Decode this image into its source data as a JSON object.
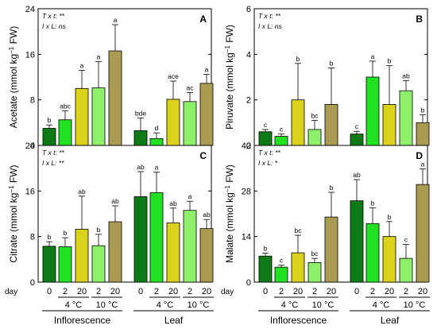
{
  "colors": [
    "#0d7a16",
    "#22e022",
    "#dcd21c",
    "#8ef06a",
    "#a99b52"
  ],
  "x_labels": {
    "day_prefix": "day",
    "days": [
      "0",
      "2",
      "20",
      "2",
      "20"
    ],
    "temps": [
      {
        "label": "4 °C",
        "bars": [
          1,
          2
        ]
      },
      {
        "label": "10 °C",
        "bars": [
          3,
          4
        ]
      }
    ],
    "groups": [
      "Inflorescence",
      "Leaf"
    ]
  },
  "chart_data": [
    {
      "type": "bar",
      "panel": "A",
      "ylabel_pre": "Acetate (mmol kg",
      "ylabel_sup": "−1",
      "ylabel_post": " FW)",
      "ylim": [
        0,
        24
      ],
      "yticks": [
        0,
        8,
        16,
        24
      ],
      "stats": [
        {
          "label": "T x t:",
          "value": " **"
        },
        {
          "label": "I x L:",
          "value": " ns"
        }
      ],
      "categories": [
        "Inflorescence",
        "Leaf"
      ],
      "series": [
        {
          "values": [
            3.0,
            2.6
          ],
          "errors": [
            0.6,
            2.2
          ],
          "letters": [
            "b",
            "bde"
          ]
        },
        {
          "values": [
            4.5,
            1.2
          ],
          "errors": [
            1.6,
            1.0
          ],
          "letters": [
            "abc",
            "d"
          ]
        },
        {
          "values": [
            10.0,
            8.1
          ],
          "errors": [
            3.2,
            3.2
          ],
          "letters": [
            "a",
            "ace"
          ]
        },
        {
          "values": [
            10.1,
            7.7
          ],
          "errors": [
            4.6,
            1.6
          ],
          "letters": [
            "a",
            "ac"
          ]
        },
        {
          "values": [
            16.6,
            10.9
          ],
          "errors": [
            4.6,
            1.6
          ],
          "letters": [
            "a",
            "a"
          ]
        }
      ]
    },
    {
      "type": "bar",
      "panel": "B",
      "ylabel_pre": "Piruvate (mmol kg",
      "ylabel_sup": "−1",
      "ylabel_post": " FW)",
      "ylim": [
        0,
        6
      ],
      "yticks": [
        0,
        2,
        4,
        6
      ],
      "stats": [
        {
          "label": "T x t:",
          "value": " **"
        },
        {
          "label": "I x L:",
          "value": " ns"
        }
      ],
      "categories": [
        "Inflorescence",
        "Leaf"
      ],
      "series": [
        {
          "values": [
            0.6,
            0.5
          ],
          "errors": [
            0.1,
            0.12
          ],
          "letters": [
            "c",
            "c"
          ]
        },
        {
          "values": [
            0.4,
            3.0
          ],
          "errors": [
            0.1,
            0.7
          ],
          "letters": [
            "c",
            "a"
          ]
        },
        {
          "values": [
            2.0,
            1.8
          ],
          "errors": [
            1.6,
            1.7
          ],
          "letters": [
            "b",
            "b"
          ]
        },
        {
          "values": [
            0.7,
            2.4
          ],
          "errors": [
            0.4,
            0.45
          ],
          "letters": [
            "bc",
            "ab"
          ]
        },
        {
          "values": [
            1.8,
            1.0
          ],
          "errors": [
            1.6,
            0.35
          ],
          "letters": [
            "b",
            "b"
          ]
        }
      ]
    },
    {
      "type": "bar",
      "panel": "C",
      "ylabel_pre": "Citrate (mmol kg",
      "ylabel_sup": "−1",
      "ylabel_post": " FW)",
      "ylim": [
        0,
        24
      ],
      "yticks": [
        0,
        8,
        16,
        24
      ],
      "stats": [
        {
          "label": "T x t:",
          "value": " **"
        },
        {
          "label": "I x L:",
          "value": " **"
        }
      ],
      "categories": [
        "Inflorescence",
        "Leaf"
      ],
      "series": [
        {
          "values": [
            6.3,
            15.0
          ],
          "errors": [
            0.8,
            4.4
          ],
          "letters": [
            "b",
            "ab"
          ]
        },
        {
          "values": [
            6.2,
            15.7
          ],
          "errors": [
            1.6,
            3.6
          ],
          "letters": [
            "b",
            "a"
          ]
        },
        {
          "values": [
            9.3,
            10.4
          ],
          "errors": [
            5.8,
            2.6
          ],
          "letters": [
            "ab",
            "ab"
          ]
        },
        {
          "values": [
            6.4,
            12.6
          ],
          "errors": [
            2.0,
            1.6
          ],
          "letters": [
            "b",
            "a"
          ]
        },
        {
          "values": [
            10.6,
            9.4
          ],
          "errors": [
            2.8,
            1.6
          ],
          "letters": [
            "ab",
            "ab"
          ]
        }
      ]
    },
    {
      "type": "bar",
      "panel": "D",
      "ylabel_pre": "Malate (mmol kg",
      "ylabel_sup": "−1",
      "ylabel_post": " FW)",
      "ylim": [
        0,
        42
      ],
      "yticks": [
        0,
        14,
        28,
        42
      ],
      "stats": [
        {
          "label": "T x t:",
          "value": " **"
        },
        {
          "label": "I x L:",
          "value": " *"
        }
      ],
      "categories": [
        "Inflorescence",
        "Leaf"
      ],
      "series": [
        {
          "values": [
            8.0,
            25.0
          ],
          "errors": [
            0.9,
            6.5
          ],
          "letters": [
            "b",
            "ab"
          ]
        },
        {
          "values": [
            4.6,
            18.0
          ],
          "errors": [
            0.6,
            4.8
          ],
          "letters": [
            "c",
            "b"
          ]
        },
        {
          "values": [
            9.0,
            14.0
          ],
          "errors": [
            5.4,
            4.6
          ],
          "letters": [
            "bc",
            "b"
          ]
        },
        {
          "values": [
            6.0,
            7.3
          ],
          "errors": [
            1.3,
            4.3
          ],
          "letters": [
            "bc",
            "c"
          ]
        },
        {
          "values": [
            20.0,
            30.0
          ],
          "errors": [
            7.6,
            4.8
          ],
          "letters": [
            "b",
            "a"
          ]
        }
      ]
    }
  ]
}
